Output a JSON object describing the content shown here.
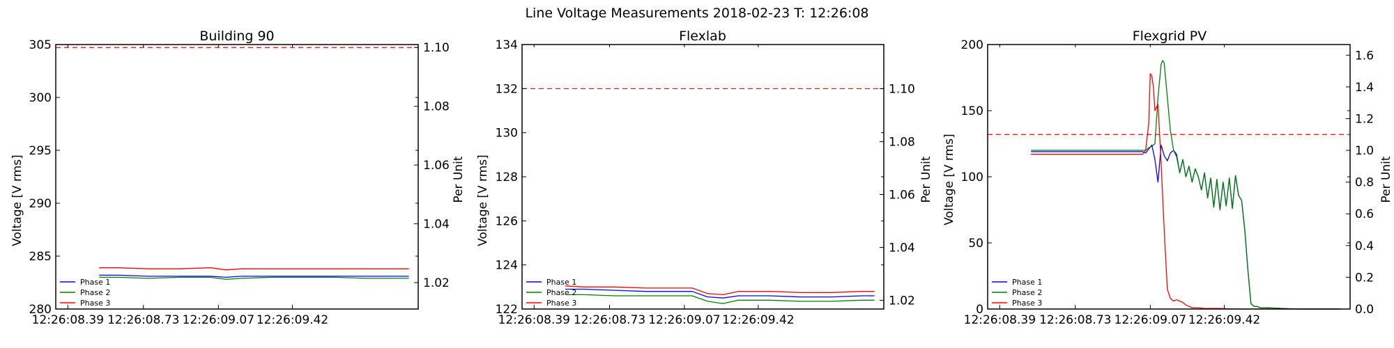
{
  "figure": {
    "suptitle": "Line Voltage Measurements 2018-02-23 T: 12:26:08"
  },
  "colors": {
    "phase1": "#0000ff",
    "phase2": "#008000",
    "phase3": "#ff0000",
    "limit": "#ff0000"
  },
  "chart_data": [
    {
      "type": "line",
      "title": "Building 90",
      "ylabel": "Voltage [V rms]",
      "y2label": "Per Unit",
      "xlim": [
        0,
        1.17
      ],
      "ylim": [
        280,
        305
      ],
      "y2lim": [
        1.011,
        1.101
      ],
      "yticks": [
        280,
        285,
        290,
        295,
        300,
        305
      ],
      "y2ticks": [
        1.02,
        1.04,
        1.06,
        1.08,
        1.1
      ],
      "y2tick_labels": [
        "1.02",
        "1.04",
        "1.06",
        "1.08",
        "1.10"
      ],
      "xticks": [
        0.039,
        0.283,
        0.525,
        0.764
      ],
      "xtick_labels": [
        "12:26:08.39",
        "12:26:08.73",
        "12:26:09.07",
        "12:26:09.42"
      ],
      "limit_line_pu": 1.1,
      "legend": {
        "placement": "lower-left",
        "entries": [
          "Phase 1",
          "Phase 2",
          "Phase 3"
        ]
      },
      "x": [
        0.14,
        0.2,
        0.3,
        0.4,
        0.5,
        0.55,
        0.6,
        0.7,
        0.8,
        0.9,
        1.0,
        1.1,
        1.14
      ],
      "series": [
        {
          "name": "Phase 1",
          "values": [
            283.2,
            283.2,
            283.1,
            283.1,
            283.1,
            283.0,
            283.1,
            283.1,
            283.1,
            283.1,
            283.1,
            283.1,
            283.1
          ]
        },
        {
          "name": "Phase 2",
          "values": [
            283.0,
            283.0,
            282.9,
            283.0,
            283.0,
            282.8,
            282.9,
            283.0,
            283.0,
            283.0,
            282.9,
            282.9,
            282.9
          ]
        },
        {
          "name": "Phase 3",
          "values": [
            283.9,
            283.9,
            283.8,
            283.8,
            283.9,
            283.7,
            283.8,
            283.8,
            283.8,
            283.8,
            283.8,
            283.8,
            283.8
          ]
        }
      ]
    },
    {
      "type": "line",
      "title": "Flexlab",
      "ylabel": "Voltage [V rms]",
      "y2label": "Per Unit",
      "xlim": [
        0,
        1.17
      ],
      "ylim": [
        122,
        134
      ],
      "y2lim": [
        1.0167,
        1.1167
      ],
      "yticks": [
        122,
        124,
        126,
        128,
        130,
        132,
        134
      ],
      "y2ticks": [
        1.02,
        1.04,
        1.06,
        1.08,
        1.1
      ],
      "y2tick_labels": [
        "1.02",
        "1.04",
        "1.06",
        "1.08",
        "1.10"
      ],
      "xticks": [
        0.039,
        0.283,
        0.525,
        0.764
      ],
      "xtick_labels": [
        "12:26:08.39",
        "12:26:08.73",
        "12:26:09.07",
        "12:26:09.42"
      ],
      "limit_line_pu": 1.1,
      "legend": {
        "placement": "lower-left",
        "entries": [
          "Phase 1",
          "Phase 2",
          "Phase 3"
        ]
      },
      "x": [
        0.14,
        0.2,
        0.3,
        0.4,
        0.5,
        0.55,
        0.6,
        0.65,
        0.7,
        0.8,
        0.9,
        1.0,
        1.1,
        1.14
      ],
      "series": [
        {
          "name": "Phase 1",
          "values": [
            122.9,
            122.9,
            122.85,
            122.8,
            122.8,
            122.8,
            122.55,
            122.5,
            122.6,
            122.6,
            122.55,
            122.55,
            122.6,
            122.6
          ]
        },
        {
          "name": "Phase 2",
          "values": [
            122.65,
            122.65,
            122.6,
            122.6,
            122.6,
            122.6,
            122.35,
            122.25,
            122.4,
            122.4,
            122.35,
            122.35,
            122.4,
            122.4
          ]
        },
        {
          "name": "Phase 3",
          "values": [
            123.05,
            123.0,
            123.0,
            122.95,
            122.95,
            122.95,
            122.7,
            122.65,
            122.8,
            122.8,
            122.75,
            122.75,
            122.8,
            122.8
          ]
        }
      ]
    },
    {
      "type": "line",
      "title": "Flexgrid PV",
      "ylabel": "Voltage [V rms]",
      "y2label": "Per Unit",
      "xlim": [
        0,
        1.17
      ],
      "ylim": [
        0,
        200
      ],
      "y2lim": [
        0,
        1.667
      ],
      "yticks": [
        0,
        50,
        100,
        150,
        200
      ],
      "y2ticks": [
        0.0,
        0.2,
        0.4,
        0.6,
        0.8,
        1.0,
        1.2,
        1.4,
        1.6
      ],
      "y2tick_labels": [
        "0.0",
        "0.2",
        "0.4",
        "0.6",
        "0.8",
        "1.0",
        "1.2",
        "1.4",
        "1.6"
      ],
      "xticks": [
        0.039,
        0.283,
        0.525,
        0.764
      ],
      "xtick_labels": [
        "12:26:08.39",
        "12:26:08.73",
        "12:26:09.07",
        "12:26:09.42"
      ],
      "limit_line_pu": 1.1,
      "legend": {
        "placement": "lower-left",
        "entries": [
          "Phase 1",
          "Phase 2",
          "Phase 3"
        ]
      },
      "series": [
        {
          "name": "Phase 1",
          "x": [
            0.14,
            0.5,
            0.51,
            0.52,
            0.53,
            0.54,
            0.55,
            0.56,
            0.57,
            0.58,
            0.59,
            0.6,
            0.61,
            0.62,
            0.63,
            0.64,
            0.65,
            0.66,
            0.67,
            0.68,
            0.69,
            0.7,
            0.71,
            0.72,
            0.73,
            0.74,
            0.75,
            0.76,
            0.77,
            0.78,
            0.79,
            0.8,
            0.81,
            0.82,
            0.83,
            0.84,
            0.85,
            0.86,
            0.87,
            0.88,
            0.9,
            0.95,
            1.0,
            1.1,
            1.14
          ],
          "values": [
            119,
            119,
            118,
            121,
            124,
            113,
            96,
            124,
            116,
            112,
            118,
            120,
            117,
            103,
            113,
            100,
            108,
            96,
            106,
            100,
            90,
            103,
            84,
            99,
            77,
            98,
            75,
            96,
            78,
            99,
            76,
            101,
            86,
            82,
            60,
            30,
            4,
            2,
            2,
            1,
            1,
            0.5,
            0,
            0,
            0
          ]
        },
        {
          "name": "Phase 2",
          "x": [
            0.14,
            0.5,
            0.51,
            0.52,
            0.53,
            0.54,
            0.55,
            0.56,
            0.565,
            0.57,
            0.58,
            0.59,
            0.6,
            0.61,
            0.62,
            0.63,
            0.64,
            0.65,
            0.66,
            0.67,
            0.68,
            0.69,
            0.7,
            0.71,
            0.72,
            0.73,
            0.74,
            0.75,
            0.76,
            0.77,
            0.78,
            0.79,
            0.8,
            0.81,
            0.82,
            0.83,
            0.84,
            0.85,
            0.86,
            0.87,
            0.88,
            0.9,
            0.95,
            1.0,
            1.1,
            1.14
          ],
          "values": [
            120,
            120,
            120,
            122,
            123,
            125,
            160,
            185,
            188,
            186,
            160,
            135,
            120,
            115,
            103,
            113,
            100,
            108,
            96,
            106,
            100,
            90,
            103,
            84,
            99,
            77,
            98,
            75,
            96,
            78,
            99,
            76,
            101,
            86,
            82,
            60,
            30,
            4,
            2,
            2,
            1,
            1,
            0.5,
            0,
            0,
            0
          ]
        },
        {
          "name": "Phase 3",
          "x": [
            0.14,
            0.5,
            0.51,
            0.52,
            0.525,
            0.53,
            0.535,
            0.54,
            0.55,
            0.56,
            0.57,
            0.58,
            0.59,
            0.6,
            0.61,
            0.62,
            0.63,
            0.64,
            0.65,
            0.66,
            0.68,
            0.7,
            0.75,
            0.8,
            0.9,
            1.0,
            1.1,
            1.14
          ],
          "values": [
            117,
            117,
            120,
            140,
            178,
            176,
            168,
            150,
            155,
            110,
            60,
            15,
            8,
            6,
            7,
            6,
            5,
            3,
            2,
            1,
            1,
            0.5,
            0.5,
            0,
            0,
            0,
            0,
            0
          ]
        }
      ]
    }
  ]
}
